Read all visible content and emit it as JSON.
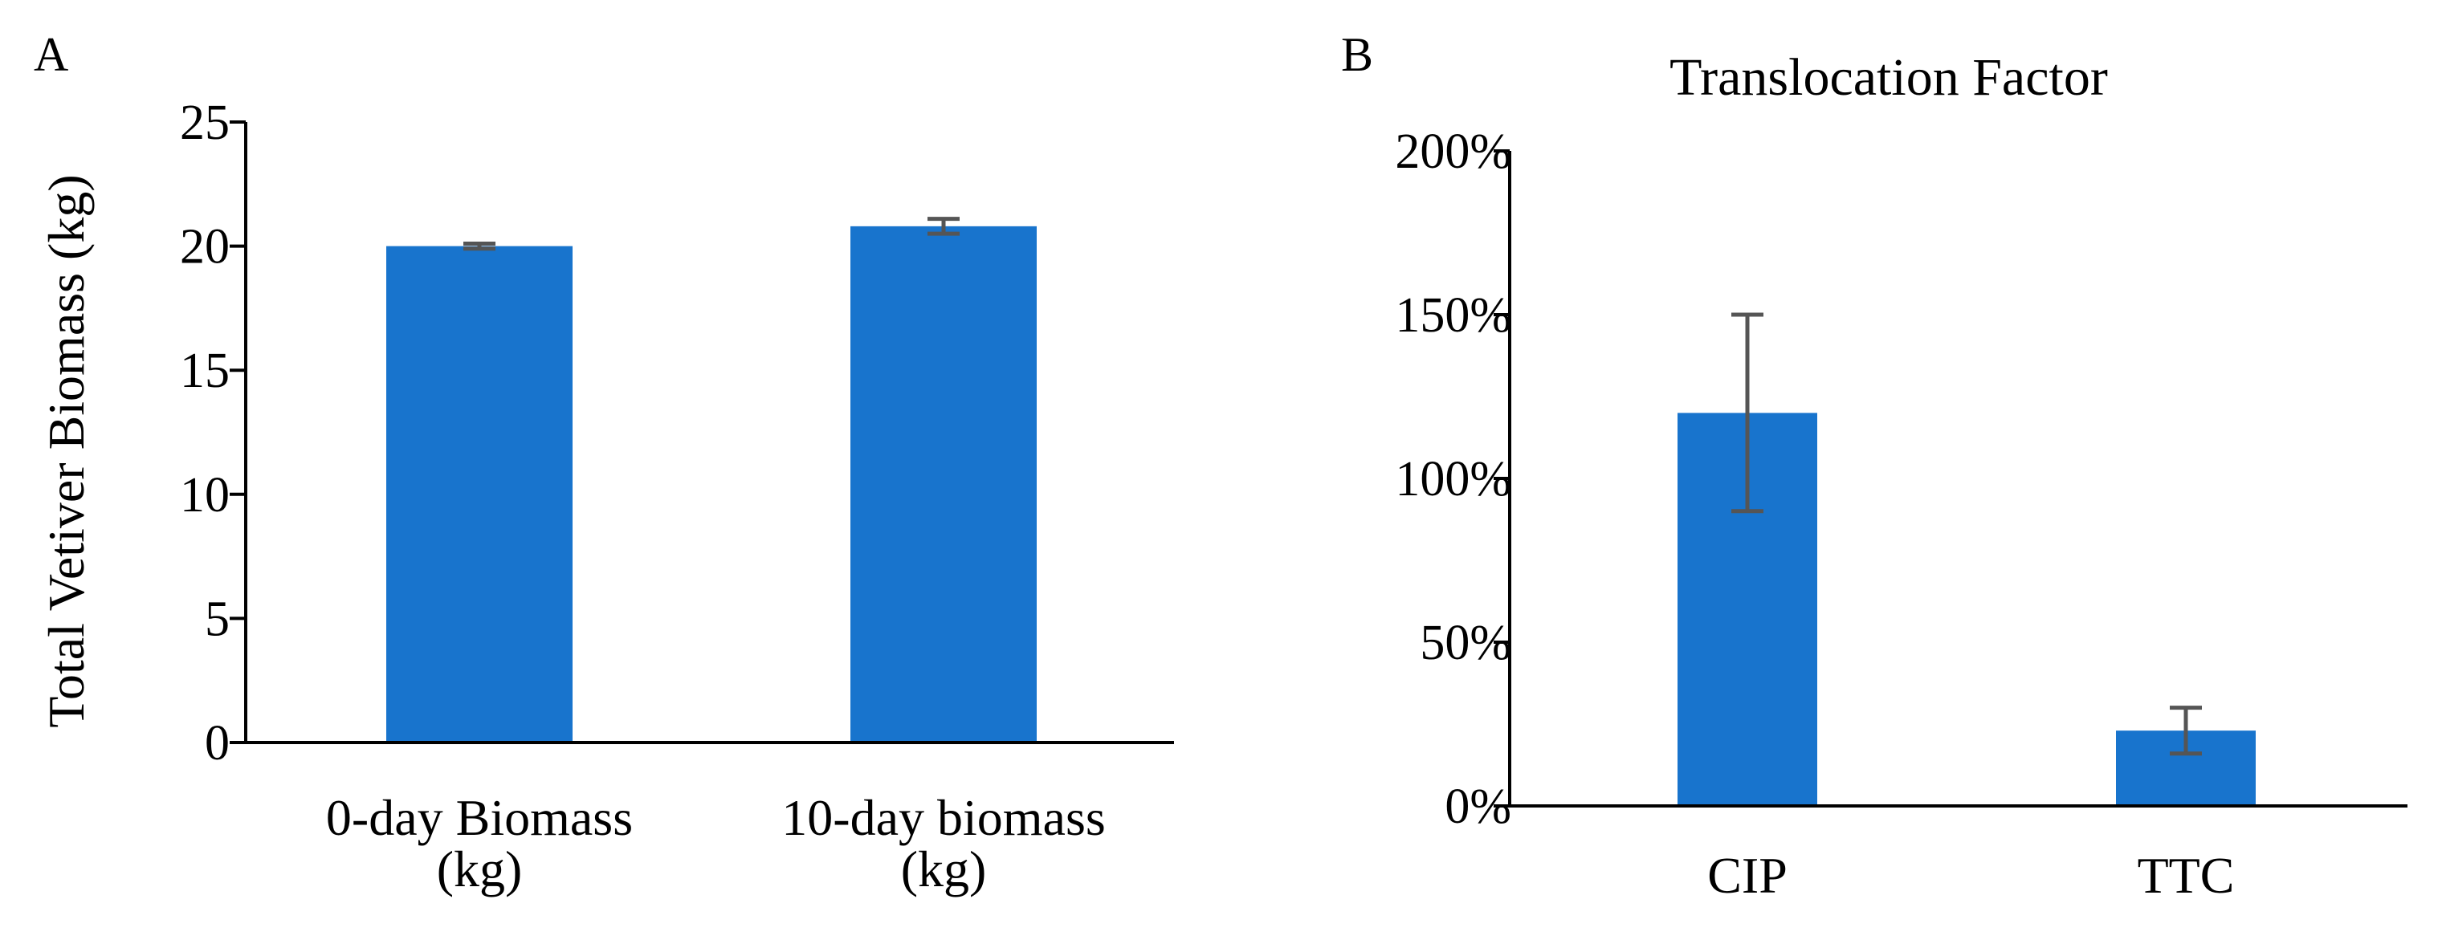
{
  "chart_data": [
    {
      "panel": "A",
      "type": "bar",
      "title": "",
      "ylabel": "Total Vetiver Biomass (kg)",
      "xlabel": "",
      "ylim": [
        0,
        25
      ],
      "yticks": [
        0,
        5,
        10,
        15,
        20,
        25
      ],
      "ytick_labels": [
        "0",
        "5",
        "10",
        "15",
        "20",
        "25"
      ],
      "categories": [
        [
          "0-day Biomass",
          "(kg)"
        ],
        [
          "10-day biomass",
          "(kg)"
        ]
      ],
      "values": [
        20.0,
        20.8
      ],
      "errors": [
        0.1,
        0.3
      ],
      "bar_color": "#1874CD",
      "error_color": "#555555"
    },
    {
      "panel": "B",
      "type": "bar",
      "title": "Translocation Factor",
      "ylabel": "",
      "xlabel": "",
      "ylim": [
        0,
        200
      ],
      "yticks": [
        0,
        50,
        100,
        150,
        200
      ],
      "ytick_labels": [
        "0%",
        "50%",
        "100%",
        "150%",
        "200%"
      ],
      "categories": [
        [
          "CIP"
        ],
        [
          "TTC"
        ]
      ],
      "values": [
        120,
        23
      ],
      "errors": [
        30,
        7
      ],
      "bar_color": "#1874CD",
      "error_color": "#555555"
    }
  ]
}
